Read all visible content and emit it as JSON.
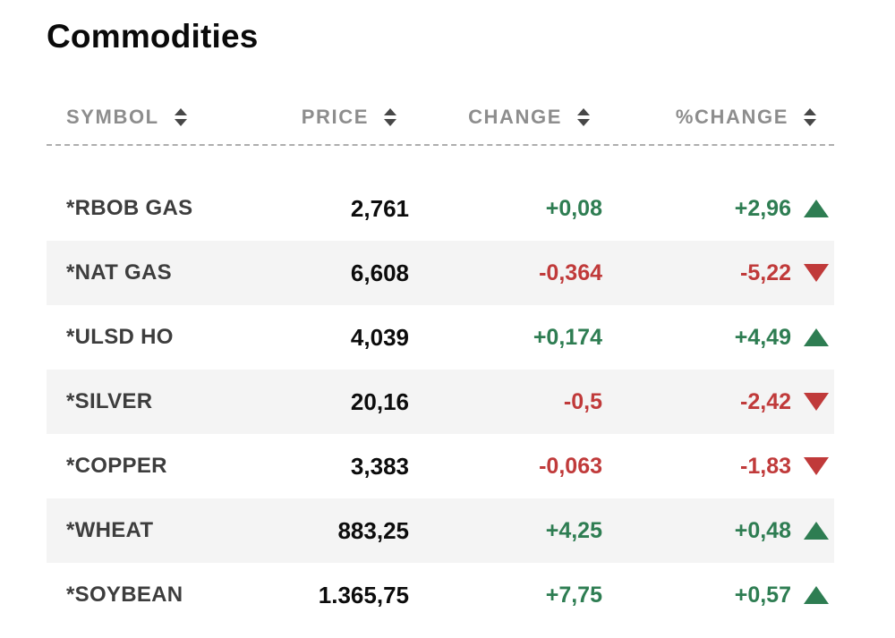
{
  "page": {
    "title": "Commodities"
  },
  "table": {
    "columns": [
      {
        "key": "symbol",
        "label": "SYMBOL"
      },
      {
        "key": "price",
        "label": "PRICE"
      },
      {
        "key": "change",
        "label": "CHANGE"
      },
      {
        "key": "pct-change",
        "label": "%CHANGE"
      }
    ],
    "rows": [
      {
        "symbol": "*RBOB GAS",
        "price": "2,761",
        "change": "+0,08",
        "pct_change": "+2,96",
        "direction": "up"
      },
      {
        "symbol": "*NAT GAS",
        "price": "6,608",
        "change": "-0,364",
        "pct_change": "-5,22",
        "direction": "down"
      },
      {
        "symbol": "*ULSD HO",
        "price": "4,039",
        "change": "+0,174",
        "pct_change": "+4,49",
        "direction": "up"
      },
      {
        "symbol": "*SILVER",
        "price": "20,16",
        "change": "-0,5",
        "pct_change": "-2,42",
        "direction": "down"
      },
      {
        "symbol": "*COPPER",
        "price": "3,383",
        "change": "-0,063",
        "pct_change": "-1,83",
        "direction": "down"
      },
      {
        "symbol": "*WHEAT",
        "price": "883,25",
        "change": "+4,25",
        "pct_change": "+0,48",
        "direction": "up"
      },
      {
        "symbol": "*SOYBEAN",
        "price": "1.365,75",
        "change": "+7,75",
        "pct_change": "+0,57",
        "direction": "up"
      }
    ],
    "colors": {
      "up": "#2e7d52",
      "down": "#c03a3a"
    },
    "icons": {
      "sort": "sort-arrows",
      "up": "triangle-up",
      "down": "triangle-down"
    }
  }
}
